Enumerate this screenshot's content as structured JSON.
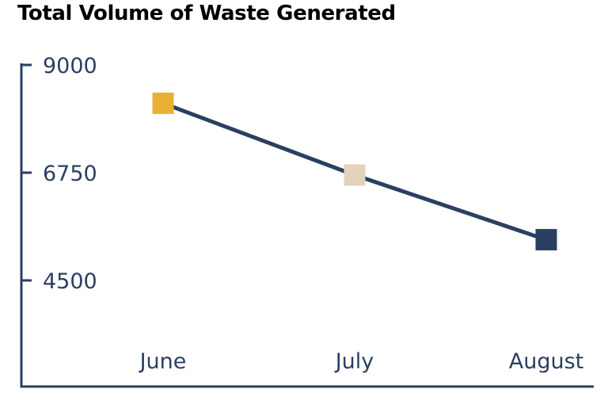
{
  "colors": {
    "axis": "#2a3f62",
    "line": "#2a3f62",
    "text": "#2a3f62",
    "title": "#000000"
  },
  "chart_data": {
    "type": "line",
    "title": "Total Volume of Waste Generated",
    "xlabel": "",
    "ylabel": "",
    "categories": [
      "June",
      "July",
      "August"
    ],
    "yticks": [
      "9000",
      "6750",
      "4500"
    ],
    "ylim": [
      2750,
      9000
    ],
    "series": [
      {
        "values": [
          8200,
          6700,
          5350
        ],
        "marker_colors": [
          "#e8b134",
          "#e3d3bc",
          "#2a3f62"
        ]
      }
    ],
    "grid": false,
    "legend": "none"
  }
}
